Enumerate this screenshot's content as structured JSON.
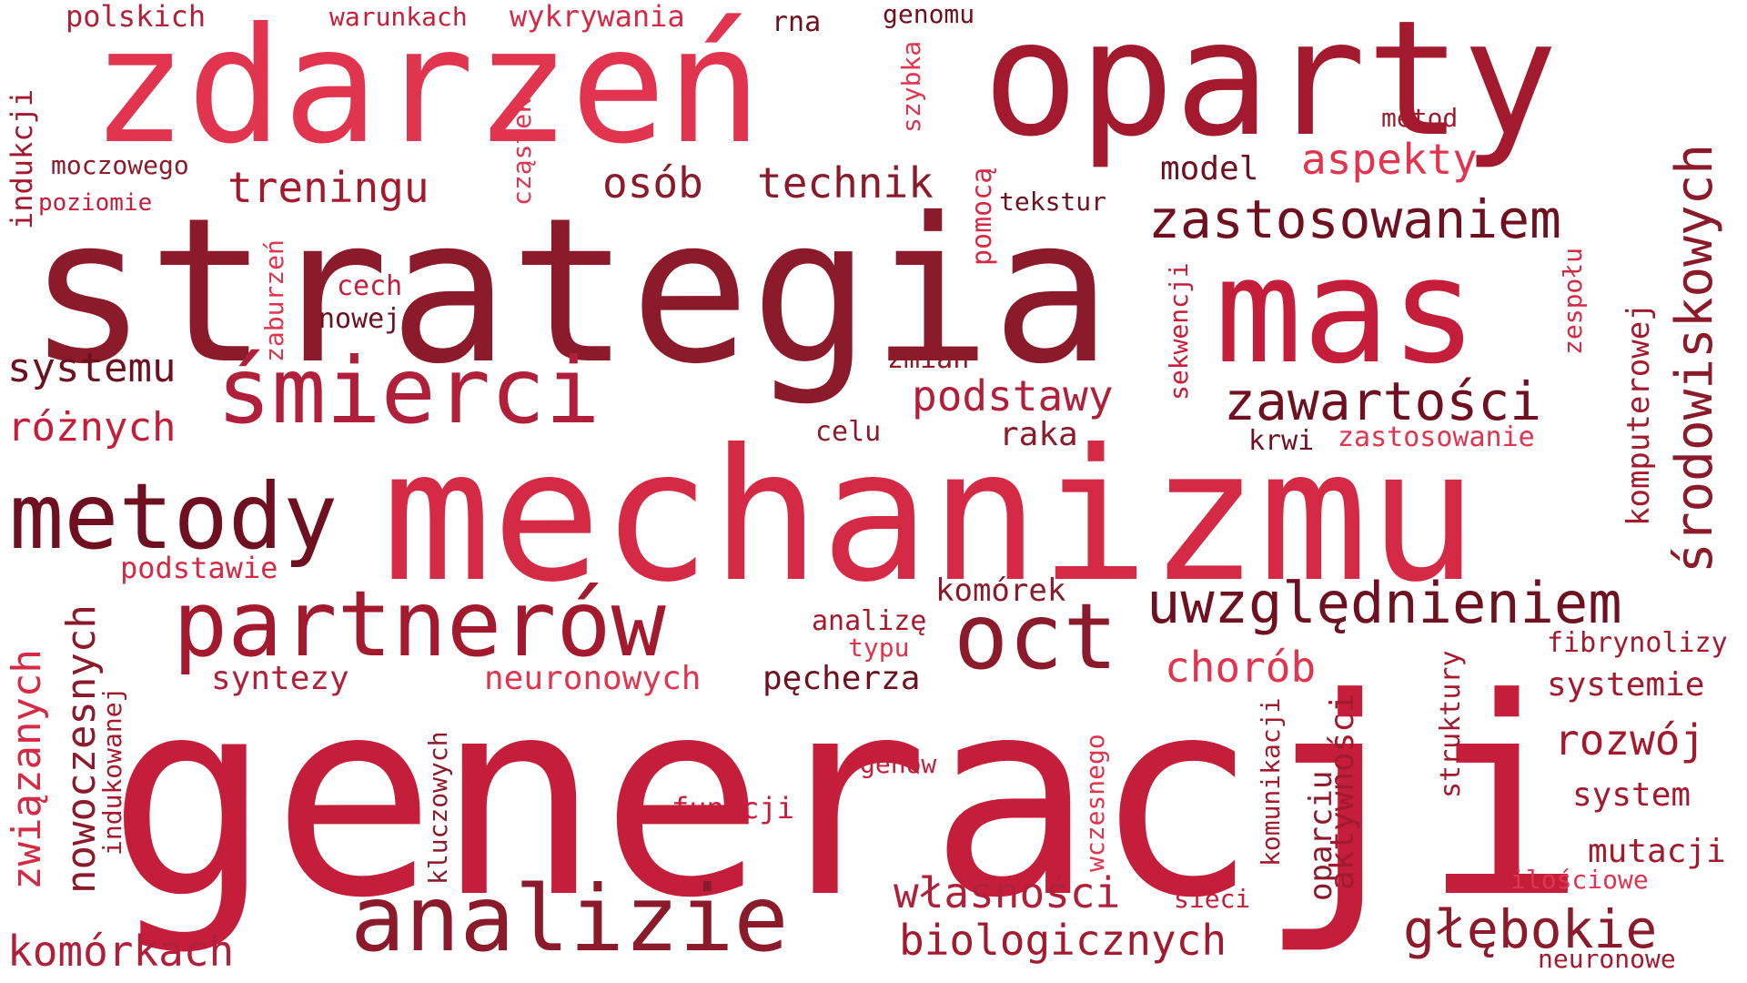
{
  "words": {
    "generacji": "generacji",
    "mechanizmu": "mechanizmu",
    "strategia": "strategia",
    "zdarzen": "zdarzeń",
    "oparty": "oparty",
    "mas": "mas",
    "smierci": "śmierci",
    "partnerow": "partnerów",
    "metody": "metody",
    "analizie": "analizie",
    "oct": "oct",
    "uwzglednieniem": "uwzględnieniem",
    "zastosowaniem": "zastosowaniem",
    "zawartosci": "zawartości",
    "srodowiskowych": "środowiskowych",
    "glebokie": "głębokie",
    "osob": "osób",
    "technik": "technik",
    "treningu": "treningu",
    "aspekty": "aspekty",
    "podstawy": "podstawy",
    "chorob": "chorób",
    "wlasnosci": "własności",
    "biologicznych": "biologicznych",
    "rozwoj": "rozwój",
    "komorkach": "komórkach",
    "nowoczesnych": "nowoczesnych",
    "zwiazanych": "związanych",
    "roznych": "różnych",
    "systemu": "systemu",
    "komputerowej": "komputerowej",
    "polskich": "polskich",
    "warunkach": "warunkach",
    "wykrywania": "wykrywania",
    "rna": "rna",
    "genomu": "genomu",
    "indukcji": "indukcji",
    "moczowego": "moczowego",
    "poziomie": "poziomie",
    "czastek": "cząstek",
    "szybka": "szybka",
    "pomoca": "pomocą",
    "tekstur": "tekstur",
    "metod": "metod",
    "model": "model",
    "zaburzen": "zaburzeń",
    "cech": "cech",
    "nowej": "nowej",
    "zmian": "zmian",
    "sekwencji": "sekwencji",
    "zespolu": "zespołu",
    "celu": "celu",
    "raka": "raka",
    "krwi": "krwi",
    "zastosowanie": "zastosowanie",
    "podstawie": "podstawie",
    "komorek": "komórek",
    "analize": "analizę",
    "typu": "typu",
    "syntezy": "syntezy",
    "neuronowych": "neuronowych",
    "pecherza": "pęcherza",
    "fibrynolizy": "fibrynolizy",
    "systemie": "systemie",
    "indukowanej": "indukowanej",
    "genow": "genów",
    "funkcji": "funkcji",
    "kluczowych": "kluczowych",
    "wczesnego": "wczesnego",
    "komunikacji": "komunikacji",
    "oparciu": "oparciu",
    "aktywnosci": "aktywności",
    "struktury": "struktury",
    "system": "system",
    "mutacji": "mutacji",
    "ilosciowe": "ilościowe",
    "sieci": "sieci",
    "neuronowe": "neuronowe"
  },
  "colors": {
    "palette": [
      "#c41e3a",
      "#e0344f",
      "#8b1a2b",
      "#a3192d",
      "#d42a45",
      "#6e1020",
      "#b0203a"
    ]
  }
}
